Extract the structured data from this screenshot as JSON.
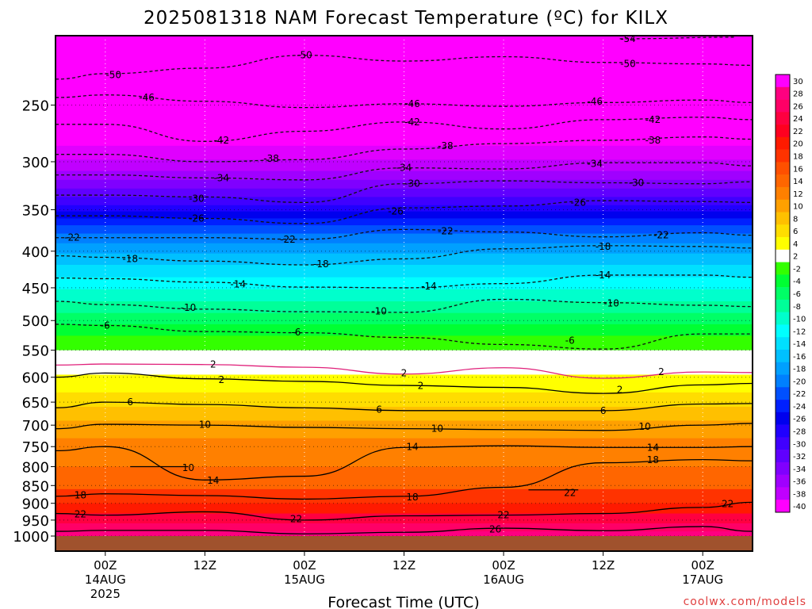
{
  "chart_data": {
    "type": "heatmap",
    "title": "2025081318 NAM Forecast Temperature (ºC) for KILX",
    "xlabel": "Forecast Time (UTC)",
    "ylabel": "",
    "watermark": "coolwx.com/models",
    "x_range_hours": [
      -6,
      78
    ],
    "y_scale": "log-pressure",
    "y_range_hPa": [
      1000,
      200
    ],
    "grid": true,
    "surface_color": "#a0522d",
    "y_ticks": [
      250,
      300,
      350,
      400,
      450,
      500,
      550,
      600,
      650,
      700,
      750,
      800,
      850,
      900,
      950,
      1000
    ],
    "x_ticks": [
      {
        "hour": 0,
        "time": "00Z",
        "date": "14AUG",
        "year": "2025"
      },
      {
        "hour": 12,
        "time": "12Z",
        "date": "",
        "year": ""
      },
      {
        "hour": 24,
        "time": "00Z",
        "date": "15AUG",
        "year": ""
      },
      {
        "hour": 36,
        "time": "12Z",
        "date": "",
        "year": ""
      },
      {
        "hour": 48,
        "time": "00Z",
        "date": "16AUG",
        "year": ""
      },
      {
        "hour": 60,
        "time": "12Z",
        "date": "",
        "year": ""
      },
      {
        "hour": 72,
        "time": "00Z",
        "date": "17AUG",
        "year": ""
      }
    ],
    "colorbar": {
      "labels": [
        "30",
        "28",
        "26",
        "24",
        "22",
        "20",
        "18",
        "16",
        "14",
        "12",
        "10",
        "8",
        "6",
        "4",
        "2",
        "-2",
        "-4",
        "-6",
        "-8",
        "-10",
        "-12",
        "-14",
        "-16",
        "-18",
        "-20",
        "-22",
        "-24",
        "-26",
        "-28",
        "-30",
        "-32",
        "-34",
        "-36",
        "-38",
        "-40"
      ],
      "colors": [
        "#ff00ff",
        "#ff0080",
        "#ff0066",
        "#ff0040",
        "#ff0020",
        "#ff1a00",
        "#ff3300",
        "#ff5000",
        "#ff6600",
        "#ff8000",
        "#ffa000",
        "#ffc000",
        "#ffdd00",
        "#ffff00",
        "#ffffff",
        "#33ff00",
        "#00ff33",
        "#00ff66",
        "#00ff99",
        "#00ffcc",
        "#00ffff",
        "#00e0ff",
        "#00c0ff",
        "#00a0ff",
        "#0080ff",
        "#0050ff",
        "#0020ff",
        "#0000ee",
        "#2000ff",
        "#4000ff",
        "#6000ff",
        "#8000ff",
        "#a000ff",
        "#c000ff",
        "#ff00ff"
      ]
    },
    "contours": [
      {
        "value": "-54",
        "hours": [
          62,
          76
        ],
        "p": [
          202,
          201
        ],
        "style": "dashed"
      },
      {
        "value": "-50",
        "hours": [
          -6,
          0,
          12,
          24,
          36,
          48,
          60,
          72,
          78
        ],
        "p": [
          230,
          226,
          222,
          213,
          217,
          214,
          218,
          219,
          220
        ],
        "style": "dashed"
      },
      {
        "value": "-46",
        "hours": [
          -6,
          0,
          12,
          24,
          36,
          48,
          60,
          72,
          78
        ],
        "p": [
          244,
          242,
          247,
          252,
          249,
          251,
          248,
          246,
          248
        ],
        "style": "dashed"
      },
      {
        "value": "-42",
        "hours": [
          -6,
          0,
          12,
          24,
          36,
          48,
          60,
          72,
          78
        ],
        "p": [
          266,
          266,
          281,
          272,
          264,
          270,
          262,
          260,
          262
        ],
        "style": "dashed"
      },
      {
        "value": "-38",
        "hours": [
          -6,
          0,
          12,
          24,
          36,
          48,
          60,
          72,
          78
        ],
        "p": [
          293,
          293,
          300,
          298,
          288,
          283,
          280,
          277,
          279
        ],
        "style": "dashed"
      },
      {
        "value": "-34",
        "hours": [
          -6,
          0,
          12,
          24,
          36,
          48,
          60,
          72,
          78
        ],
        "p": [
          313,
          313,
          316,
          318,
          306,
          307,
          301,
          301,
          304
        ],
        "style": "dashed"
      },
      {
        "value": "-30",
        "hours": [
          -6,
          0,
          12,
          24,
          36,
          48,
          60,
          72,
          78
        ],
        "p": [
          334,
          334,
          336,
          342,
          322,
          319,
          321,
          322,
          320
        ],
        "style": "dashed"
      },
      {
        "value": "-26",
        "hours": [
          -6,
          0,
          12,
          24,
          36,
          48,
          60,
          72,
          78
        ],
        "p": [
          357,
          357,
          360,
          366,
          348,
          346,
          340,
          341,
          342
        ],
        "style": "dashed"
      },
      {
        "value": "-22",
        "hours": [
          -6,
          0,
          12,
          24,
          36,
          48,
          60,
          72,
          78
        ],
        "p": [
          383,
          383,
          383,
          385,
          373,
          376,
          382,
          377,
          380
        ],
        "style": "dashed"
      },
      {
        "value": "-18",
        "hours": [
          -6,
          0,
          12,
          24,
          36,
          48,
          60,
          72,
          78
        ],
        "p": [
          406,
          408,
          413,
          418,
          410,
          397,
          393,
          394,
          396
        ],
        "style": "dashed"
      },
      {
        "value": "-14",
        "hours": [
          -6,
          0,
          12,
          24,
          36,
          48,
          60,
          72,
          78
        ],
        "p": [
          436,
          437,
          442,
          449,
          450,
          444,
          432,
          432,
          435
        ],
        "style": "dashed"
      },
      {
        "value": "-10",
        "hours": [
          -6,
          0,
          12,
          24,
          36,
          48,
          60,
          72,
          78
        ],
        "p": [
          470,
          475,
          482,
          486,
          487,
          467,
          472,
          476,
          478
        ],
        "style": "dashed"
      },
      {
        "value": "-6",
        "hours": [
          -6,
          0,
          12,
          24,
          36,
          48,
          60,
          72,
          78
        ],
        "p": [
          506,
          508,
          518,
          520,
          528,
          540,
          548,
          522,
          522
        ],
        "style": "dashed"
      },
      {
        "value": "2",
        "hours": [
          -6,
          0,
          12,
          24,
          36,
          48,
          60,
          72,
          78
        ],
        "p": [
          577,
          575,
          576,
          581,
          594,
          582,
          602,
          590,
          591
        ],
        "style": "solid-magenta"
      },
      {
        "value": "2",
        "hours": [
          -6,
          0,
          12,
          24,
          36,
          48,
          60,
          72,
          78
        ],
        "p": [
          600,
          592,
          603,
          608,
          616,
          620,
          632,
          615,
          612
        ],
        "style": "solid"
      },
      {
        "value": "6",
        "hours": [
          -6,
          0,
          12,
          24,
          36,
          48,
          60,
          72,
          78
        ],
        "p": [
          662,
          650,
          655,
          662,
          668,
          668,
          668,
          654,
          653
        ],
        "style": "solid"
      },
      {
        "value": "10",
        "hours": [
          -6,
          0,
          12,
          24,
          36,
          48,
          60,
          72,
          78
        ],
        "p": [
          708,
          698,
          700,
          705,
          708,
          710,
          712,
          700,
          696
        ],
        "style": "solid"
      },
      {
        "value": "14",
        "hours": [
          -6,
          0,
          12,
          24,
          36,
          48,
          60,
          72,
          78
        ],
        "p": [
          760,
          750,
          835,
          825,
          752,
          748,
          752,
          752,
          750
        ],
        "style": "solid"
      },
      {
        "value": "18",
        "hours": [
          -6,
          0,
          12,
          24,
          36,
          48,
          60,
          72,
          78
        ],
        "p": [
          880,
          873,
          878,
          888,
          880,
          855,
          790,
          782,
          785
        ],
        "style": "solid"
      },
      {
        "value": "22",
        "hours": [
          -6,
          0,
          12,
          24,
          36,
          48,
          60,
          72,
          78
        ],
        "p": [
          930,
          935,
          925,
          950,
          937,
          935,
          930,
          912,
          897
        ],
        "style": "solid"
      },
      {
        "value": "26",
        "hours": [
          -6,
          0,
          12,
          24,
          36,
          48,
          60,
          72,
          78
        ],
        "p": [
          985,
          982,
          982,
          993,
          988,
          975,
          983,
          970,
          985
        ],
        "style": "solid"
      },
      {
        "value": "10",
        "hours": [
          3,
          10
        ],
        "p": [
          800,
          800
        ],
        "style": "solid"
      },
      {
        "value": "22",
        "hours": [
          51,
          57
        ],
        "p": [
          862,
          862
        ],
        "style": "solid"
      }
    ],
    "contour_labels": [
      {
        "text": "-54",
        "hour": 63,
        "p": 202
      },
      {
        "text": "-50",
        "hour": 1,
        "p": 227
      },
      {
        "text": "-50",
        "hour": 24,
        "p": 213
      },
      {
        "text": "-50",
        "hour": 63,
        "p": 219
      },
      {
        "text": "-46",
        "hour": 5,
        "p": 244
      },
      {
        "text": "-46",
        "hour": 37,
        "p": 249
      },
      {
        "text": "-46",
        "hour": 59,
        "p": 247
      },
      {
        "text": "-42",
        "hour": 14,
        "p": 280
      },
      {
        "text": "-42",
        "hour": 37,
        "p": 264
      },
      {
        "text": "-42",
        "hour": 66,
        "p": 262
      },
      {
        "text": "-38",
        "hour": 20,
        "p": 297
      },
      {
        "text": "-38",
        "hour": 41,
        "p": 285
      },
      {
        "text": "-38",
        "hour": 66,
        "p": 280
      },
      {
        "text": "-34",
        "hour": 14,
        "p": 316
      },
      {
        "text": "-34",
        "hour": 36,
        "p": 306
      },
      {
        "text": "-34",
        "hour": 59,
        "p": 302
      },
      {
        "text": "-30",
        "hour": 11,
        "p": 338
      },
      {
        "text": "-30",
        "hour": 37,
        "p": 322
      },
      {
        "text": "-30",
        "hour": 64,
        "p": 321
      },
      {
        "text": "-26",
        "hour": 11,
        "p": 360
      },
      {
        "text": "-26",
        "hour": 35,
        "p": 352
      },
      {
        "text": "-26",
        "hour": 57,
        "p": 342
      },
      {
        "text": "-22",
        "hour": -4,
        "p": 383
      },
      {
        "text": "-22",
        "hour": 22,
        "p": 385
      },
      {
        "text": "-22",
        "hour": 41,
        "p": 375
      },
      {
        "text": "-22",
        "hour": 67,
        "p": 380
      },
      {
        "text": "-18",
        "hour": 3,
        "p": 410
      },
      {
        "text": "-18",
        "hour": 26,
        "p": 417
      },
      {
        "text": "-18",
        "hour": 60,
        "p": 394
      },
      {
        "text": "-14",
        "hour": 16,
        "p": 445
      },
      {
        "text": "-14",
        "hour": 39,
        "p": 448
      },
      {
        "text": "-14",
        "hour": 60,
        "p": 432
      },
      {
        "text": "-10",
        "hour": 10,
        "p": 480
      },
      {
        "text": "-10",
        "hour": 33,
        "p": 485
      },
      {
        "text": "-10",
        "hour": 61,
        "p": 473
      },
      {
        "text": "-6",
        "hour": 0,
        "p": 508
      },
      {
        "text": "-6",
        "hour": 23,
        "p": 519
      },
      {
        "text": "-6",
        "hour": 56,
        "p": 533
      },
      {
        "text": "2",
        "hour": 13,
        "p": 576
      },
      {
        "text": "2",
        "hour": 36,
        "p": 592
      },
      {
        "text": "2",
        "hour": 67,
        "p": 590
      },
      {
        "text": "2",
        "hour": 14,
        "p": 605
      },
      {
        "text": "2",
        "hour": 38,
        "p": 617
      },
      {
        "text": "2",
        "hour": 62,
        "p": 625
      },
      {
        "text": "6",
        "hour": 3,
        "p": 650
      },
      {
        "text": "6",
        "hour": 33,
        "p": 666
      },
      {
        "text": "6",
        "hour": 60,
        "p": 668
      },
      {
        "text": "10",
        "hour": 12,
        "p": 699
      },
      {
        "text": "10",
        "hour": 40,
        "p": 708
      },
      {
        "text": "10",
        "hour": 65,
        "p": 703
      },
      {
        "text": "10",
        "hour": 10,
        "p": 803
      },
      {
        "text": "14",
        "hour": 37,
        "p": 751
      },
      {
        "text": "14",
        "hour": 66,
        "p": 752
      },
      {
        "text": "14",
        "hour": 13,
        "p": 836
      },
      {
        "text": "18",
        "hour": -3,
        "p": 877
      },
      {
        "text": "18",
        "hour": 37,
        "p": 883
      },
      {
        "text": "18",
        "hour": 66,
        "p": 783
      },
      {
        "text": "22",
        "hour": -3,
        "p": 932
      },
      {
        "text": "22",
        "hour": 23,
        "p": 947
      },
      {
        "text": "22",
        "hour": 48,
        "p": 935
      },
      {
        "text": "22",
        "hour": 56,
        "p": 870
      },
      {
        "text": "22",
        "hour": 75,
        "p": 902
      },
      {
        "text": "26",
        "hour": 47,
        "p": 978
      }
    ],
    "bands": [
      {
        "color": "#ff00ff",
        "top": 190,
        "bottom": 285
      },
      {
        "color": "#e000ff",
        "top": 285,
        "bottom": 298
      },
      {
        "color": "#c000ff",
        "top": 298,
        "bottom": 309
      },
      {
        "color": "#a000ff",
        "top": 309,
        "bottom": 318
      },
      {
        "color": "#8000ff",
        "top": 318,
        "bottom": 327
      },
      {
        "color": "#6000ff",
        "top": 327,
        "bottom": 336
      },
      {
        "color": "#4000ff",
        "top": 336,
        "bottom": 345
      },
      {
        "color": "#2000ff",
        "top": 345,
        "bottom": 352
      },
      {
        "color": "#0000ee",
        "top": 352,
        "bottom": 360
      },
      {
        "color": "#0020ff",
        "top": 360,
        "bottom": 368
      },
      {
        "color": "#0050ff",
        "top": 368,
        "bottom": 378
      },
      {
        "color": "#0080ff",
        "top": 378,
        "bottom": 390
      },
      {
        "color": "#00a0ff",
        "top": 390,
        "bottom": 403
      },
      {
        "color": "#00c0ff",
        "top": 403,
        "bottom": 418
      },
      {
        "color": "#00e0ff",
        "top": 418,
        "bottom": 435
      },
      {
        "color": "#00ffff",
        "top": 435,
        "bottom": 452
      },
      {
        "color": "#00ffcc",
        "top": 452,
        "bottom": 470
      },
      {
        "color": "#00ff99",
        "top": 470,
        "bottom": 488
      },
      {
        "color": "#00ff66",
        "top": 488,
        "bottom": 506
      },
      {
        "color": "#00ff33",
        "top": 506,
        "bottom": 525
      },
      {
        "color": "#33ff00",
        "top": 525,
        "bottom": 550
      },
      {
        "color": "#ffffff",
        "top": 550,
        "bottom": 595
      },
      {
        "color": "#ffff00",
        "top": 595,
        "bottom": 630
      },
      {
        "color": "#ffdd00",
        "top": 630,
        "bottom": 660
      },
      {
        "color": "#ffc000",
        "top": 660,
        "bottom": 690
      },
      {
        "color": "#ffa000",
        "top": 690,
        "bottom": 730
      },
      {
        "color": "#ff8000",
        "top": 730,
        "bottom": 800
      },
      {
        "color": "#ff6600",
        "top": 800,
        "bottom": 860
      },
      {
        "color": "#ff3300",
        "top": 860,
        "bottom": 900
      },
      {
        "color": "#ff1a00",
        "top": 900,
        "bottom": 930
      },
      {
        "color": "#ff0040",
        "top": 930,
        "bottom": 960
      },
      {
        "color": "#ff0066",
        "top": 960,
        "bottom": 985
      },
      {
        "color": "#ff0080",
        "top": 985,
        "bottom": 1000
      }
    ]
  }
}
